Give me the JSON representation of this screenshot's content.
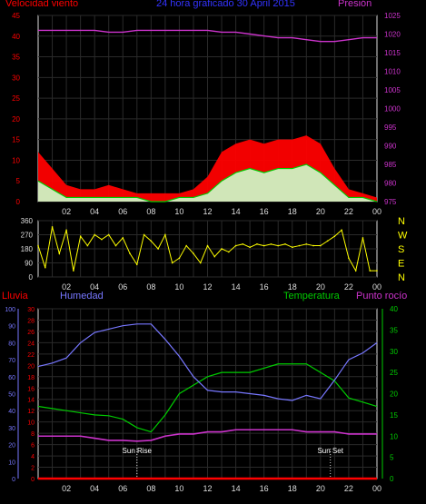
{
  "header": {
    "wind_label": "Velocidad viento",
    "title": "24 hora graficado 30 April 2015",
    "pressure_label": "Presión"
  },
  "labels": {
    "rain": "Lluvia",
    "humidity": "Humedad",
    "temperature": "Temperatura",
    "dewpoint": "Punto rocío",
    "sunrise": "Sun Rise",
    "sunset": "Sun Set"
  },
  "colors": {
    "wind": "#ff0000",
    "gust": "#ff0000",
    "average": "#00cc00",
    "calm": "#ccffcc",
    "pressure": "#cc33cc",
    "direction": "#ffff00",
    "humidity": "#7777ff",
    "temperature": "#00cc00",
    "dewpoint": "#cc33cc",
    "rain": "#ff0000",
    "grid": "#2a2a2a",
    "axis": "#dddddd"
  },
  "chart_data": [
    {
      "type": "area",
      "title": "24 hora graficado 30 April 2015",
      "x_ticks": [
        "02",
        "04",
        "06",
        "08",
        "10",
        "12",
        "14",
        "16",
        "18",
        "20",
        "22",
        "00"
      ],
      "x_hours": [
        0,
        1,
        2,
        3,
        4,
        5,
        6,
        7,
        8,
        9,
        10,
        11,
        12,
        13,
        14,
        15,
        16,
        17,
        18,
        19,
        20,
        21,
        22,
        23,
        24
      ],
      "ylim_left": [
        0,
        45
      ],
      "yticks_left": [
        0,
        5,
        10,
        15,
        20,
        25,
        30,
        35,
        40,
        45
      ],
      "ylabel_left": "Velocidad viento",
      "ylim_right": [
        975,
        1025
      ],
      "yticks_right": [
        975,
        980,
        985,
        990,
        995,
        1000,
        1005,
        1010,
        1015,
        1020,
        1025
      ],
      "ylabel_right": "Presión",
      "series": [
        {
          "name": "Gust",
          "values": [
            12,
            8,
            4,
            3,
            3,
            4,
            3,
            2,
            2,
            2,
            2,
            3,
            6,
            12,
            14,
            15,
            14,
            15,
            15,
            16,
            14,
            8,
            3,
            2,
            1
          ]
        },
        {
          "name": "Average",
          "values": [
            5,
            3,
            1,
            1,
            1,
            1,
            1,
            1,
            0,
            0,
            1,
            1,
            2,
            5,
            7,
            8,
            7,
            8,
            8,
            9,
            7,
            4,
            1,
            1,
            0
          ]
        },
        {
          "name": "Presión",
          "values": [
            1021,
            1021,
            1021,
            1021,
            1021,
            1020.5,
            1020.5,
            1021,
            1021,
            1021,
            1021,
            1021,
            1021,
            1020.5,
            1020.5,
            1020,
            1019.5,
            1019,
            1019,
            1018.5,
            1018,
            1018,
            1018.5,
            1019,
            1019
          ]
        }
      ]
    },
    {
      "type": "scatter",
      "x_ticks": [
        "02",
        "04",
        "06",
        "08",
        "10",
        "12",
        "14",
        "16",
        "18",
        "20",
        "22",
        "00"
      ],
      "ylim": [
        0,
        360
      ],
      "yticks": [
        0,
        90,
        180,
        270,
        360
      ],
      "compass_labels": [
        "N",
        "W",
        "S",
        "E",
        "N"
      ],
      "series": [
        {
          "name": "Dirección",
          "x": [
            0,
            0.5,
            1,
            1.5,
            2,
            2.5,
            3,
            3.5,
            4,
            4.5,
            5,
            5.5,
            6,
            6.5,
            7,
            7.5,
            8,
            8.5,
            9,
            9.5,
            10,
            10.5,
            11,
            11.5,
            12,
            12.5,
            13,
            13.5,
            14,
            14.5,
            15,
            15.5,
            16,
            16.5,
            17,
            17.5,
            18,
            18.5,
            19,
            19.5,
            20,
            20.5,
            21,
            21.5,
            22,
            22.5,
            23,
            23.5,
            24
          ],
          "values": [
            200,
            60,
            320,
            150,
            300,
            40,
            260,
            200,
            270,
            240,
            270,
            200,
            250,
            150,
            80,
            270,
            230,
            180,
            270,
            90,
            120,
            200,
            150,
            90,
            200,
            130,
            180,
            160,
            200,
            210,
            190,
            210,
            200,
            210,
            200,
            210,
            190,
            200,
            210,
            200,
            200,
            230,
            260,
            300,
            120,
            40,
            250,
            40,
            40
          ]
        }
      ]
    },
    {
      "type": "line",
      "x_ticks": [
        "02",
        "04",
        "06",
        "08",
        "10",
        "12",
        "14",
        "16",
        "18",
        "20",
        "22",
        "00"
      ],
      "x_hours": [
        0,
        1,
        2,
        3,
        4,
        5,
        6,
        7,
        8,
        9,
        10,
        11,
        12,
        13,
        14,
        15,
        16,
        17,
        18,
        19,
        20,
        21,
        22,
        23,
        24
      ],
      "axes": [
        {
          "name": "Humedad",
          "ylim": [
            0,
            100
          ],
          "yticks": [
            0,
            10,
            20,
            30,
            40,
            50,
            60,
            70,
            80,
            90,
            100
          ]
        },
        {
          "name": "Lluvia",
          "ylim": [
            0,
            30
          ],
          "yticks": [
            0,
            2,
            4,
            6,
            8,
            10,
            12,
            14,
            16,
            18,
            20,
            22,
            24,
            26,
            28,
            30
          ]
        },
        {
          "name": "Temperatura",
          "ylim": [
            0,
            40
          ],
          "yticks": [
            0,
            5,
            10,
            15,
            20,
            25,
            30,
            35,
            40
          ]
        }
      ],
      "series": [
        {
          "name": "Humedad",
          "values": [
            66,
            68,
            71,
            80,
            86,
            88,
            90,
            91,
            91,
            82,
            72,
            60,
            52,
            51,
            51,
            50,
            49,
            47,
            46,
            49,
            47,
            58,
            70,
            74,
            80
          ]
        },
        {
          "name": "Temperatura",
          "values": [
            17,
            16.5,
            16,
            15.5,
            15,
            14.8,
            14,
            12,
            11,
            15,
            20,
            22,
            24,
            25,
            25,
            25,
            26,
            27,
            27,
            27,
            25,
            23,
            19,
            18,
            17
          ]
        },
        {
          "name": "Punto rocío",
          "values": [
            10,
            10,
            10,
            10,
            9.5,
            9,
            9,
            8.8,
            9,
            10,
            10.5,
            10.5,
            11,
            11,
            11.5,
            11.5,
            11.5,
            11.5,
            11.5,
            11,
            11,
            11,
            10.5,
            10.5,
            10.5
          ]
        },
        {
          "name": "Lluvia",
          "values": [
            0,
            0,
            0,
            0,
            0,
            0,
            0,
            0,
            0,
            0,
            0,
            0,
            0,
            0,
            0,
            0,
            0,
            0,
            0,
            0,
            0,
            0,
            0,
            0,
            0
          ]
        }
      ],
      "annotations": [
        {
          "text": "Sun Rise",
          "x_hour": 7.0
        },
        {
          "text": "Sun Set",
          "x_hour": 20.7
        }
      ]
    }
  ]
}
